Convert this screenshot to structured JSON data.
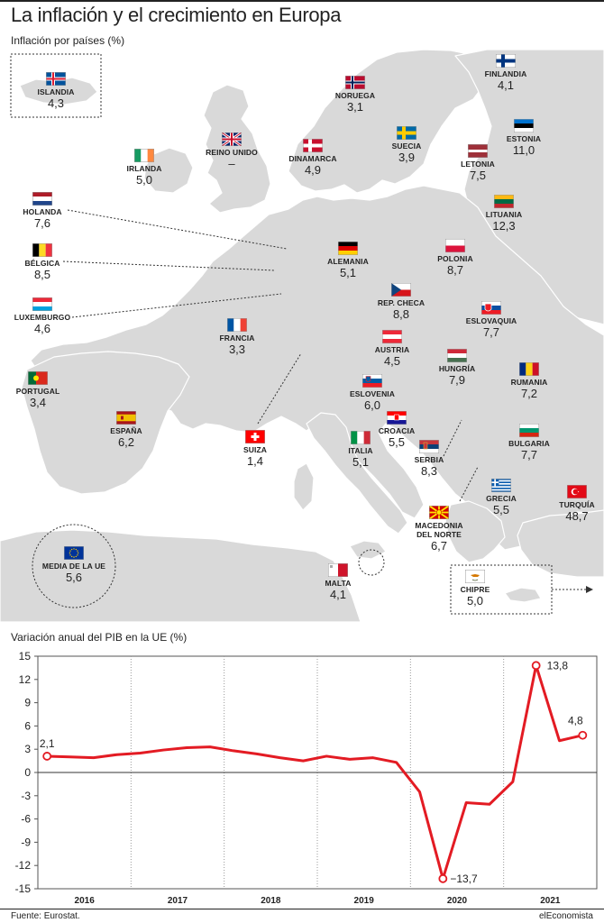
{
  "header": {
    "title": "La inflación y el crecimiento en Europa",
    "map_subtitle": "Inflación por países (%)"
  },
  "colors": {
    "land": "#d9d9d9",
    "sea": "#ffffff",
    "line": "#e31b23"
  },
  "countries": [
    {
      "key": "islandia",
      "name": "ISLANDIA",
      "value": "4,3",
      "flag": "iceland-flag"
    },
    {
      "key": "noruega",
      "name": "NORUEGA",
      "value": "3,1",
      "flag": "norway-flag"
    },
    {
      "key": "finlandia",
      "name": "FINLANDIA",
      "value": "4,1",
      "flag": "finland-flag"
    },
    {
      "key": "reino_unido",
      "name": "REINO UNIDO",
      "value": "–",
      "flag": "uk-flag"
    },
    {
      "key": "irlanda",
      "name": "IRLANDA",
      "value": "5,0",
      "flag": "ireland-flag"
    },
    {
      "key": "dinamarca",
      "name": "DINAMARCA",
      "value": "4,9",
      "flag": "denmark-flag"
    },
    {
      "key": "suecia",
      "name": "SUECIA",
      "value": "3,9",
      "flag": "sweden-flag"
    },
    {
      "key": "estonia",
      "name": "ESTONIA",
      "value": "11,0",
      "flag": "estonia-flag"
    },
    {
      "key": "letonia",
      "name": "LETONIA",
      "value": "7,5",
      "flag": "latvia-flag"
    },
    {
      "key": "lituania",
      "name": "LITUANIA",
      "value": "12,3",
      "flag": "lithuania-flag"
    },
    {
      "key": "holanda",
      "name": "HOLANDA",
      "value": "7,6",
      "flag": "netherlands-flag"
    },
    {
      "key": "belgica",
      "name": "BÉLGICA",
      "value": "8,5",
      "flag": "belgium-flag"
    },
    {
      "key": "luxemburgo",
      "name": "LUXEMBURGO",
      "value": "4,6",
      "flag": "luxembourg-flag"
    },
    {
      "key": "alemania",
      "name": "ALEMANIA",
      "value": "5,1",
      "flag": "germany-flag"
    },
    {
      "key": "polonia",
      "name": "POLONIA",
      "value": "8,7",
      "flag": "poland-flag"
    },
    {
      "key": "rep_checa",
      "name": "REP. CHECA",
      "value": "8,8",
      "flag": "czech-flag"
    },
    {
      "key": "eslovaquia",
      "name": "ESLOVAQUIA",
      "value": "7,7",
      "flag": "slovakia-flag"
    },
    {
      "key": "francia",
      "name": "FRANCIA",
      "value": "3,3",
      "flag": "france-flag"
    },
    {
      "key": "austria",
      "name": "AUSTRIA",
      "value": "4,5",
      "flag": "austria-flag"
    },
    {
      "key": "hungria",
      "name": "HUNGRÍA",
      "value": "7,9",
      "flag": "hungary-flag"
    },
    {
      "key": "rumania",
      "name": "RUMANIA",
      "value": "7,2",
      "flag": "romania-flag"
    },
    {
      "key": "portugal",
      "name": "PORTUGAL",
      "value": "3,4",
      "flag": "portugal-flag"
    },
    {
      "key": "eslovenia",
      "name": "ESLOVENIA",
      "value": "6,0",
      "flag": "slovenia-flag"
    },
    {
      "key": "croacia",
      "name": "CROACIA",
      "value": "5,5",
      "flag": "croatia-flag"
    },
    {
      "key": "espana",
      "name": "ESPAÑA",
      "value": "6,2",
      "flag": "spain-flag"
    },
    {
      "key": "suiza",
      "name": "SUIZA",
      "value": "1,4",
      "flag": "switzerland-flag"
    },
    {
      "key": "italia",
      "name": "ITALIA",
      "value": "5,1",
      "flag": "italy-flag"
    },
    {
      "key": "serbia",
      "name": "SERBIA",
      "value": "8,3",
      "flag": "serbia-flag"
    },
    {
      "key": "bulgaria",
      "name": "BULGARIA",
      "value": "7,7",
      "flag": "bulgaria-flag"
    },
    {
      "key": "grecia",
      "name": "GRECIA",
      "value": "5,5",
      "flag": "greece-flag"
    },
    {
      "key": "turquia",
      "name": "TURQUÍA",
      "value": "48,7",
      "flag": "turkey-flag"
    },
    {
      "key": "macedonia",
      "name": "MACEDONIA\nDEL NORTE",
      "value": "6,7",
      "flag": "north-macedonia-flag"
    },
    {
      "key": "media_ue",
      "name": "MEDIA DE LA UE",
      "value": "5,6",
      "flag": "eu-flag"
    },
    {
      "key": "malta",
      "name": "MALTA",
      "value": "4,1",
      "flag": "malta-flag"
    },
    {
      "key": "chipre",
      "name": "CHIPRE",
      "value": "5,0",
      "flag": "cyprus-flag"
    }
  ],
  "chart_data": {
    "type": "line",
    "title": "Variación anual del PIB en la UE (%)",
    "x_labels": [
      "2016",
      "2017",
      "2018",
      "2019",
      "2020",
      "2021"
    ],
    "x": [
      "2016 T1",
      "2016 T2",
      "2016 T3",
      "2016 T4",
      "2017 T1",
      "2017 T2",
      "2017 T3",
      "2017 T4",
      "2018 T1",
      "2018 T2",
      "2018 T3",
      "2018 T4",
      "2019 T1",
      "2019 T2",
      "2019 T3",
      "2019 T4",
      "2020 T1",
      "2020 T2",
      "2020 T3",
      "2020 T4",
      "2021 T1",
      "2021 T2",
      "2021 T3",
      "2021 T4"
    ],
    "values": [
      2.1,
      2.0,
      1.9,
      2.3,
      2.5,
      2.9,
      3.2,
      3.3,
      2.8,
      2.4,
      1.9,
      1.5,
      2.1,
      1.7,
      1.9,
      1.3,
      -2.5,
      -13.7,
      -3.9,
      -4.1,
      -1.2,
      13.8,
      4.1,
      4.8
    ],
    "y_ticks": [
      15,
      12,
      9,
      6,
      3,
      0,
      -3,
      -6,
      -9,
      -12,
      -15
    ],
    "y_tick_labels": [
      "15",
      "12",
      "9",
      "6",
      "3",
      "0",
      "-3",
      "-6",
      "-9",
      "-12",
      "-15"
    ],
    "ylim": [
      -15,
      15
    ],
    "annotations": [
      {
        "index": 0,
        "label": "2,1"
      },
      {
        "index": 17,
        "label": "−13,7"
      },
      {
        "index": 21,
        "label": "13,8"
      },
      {
        "index": 23,
        "label": "4,8"
      }
    ],
    "grid": "vertical dotted year separators, solid zero line"
  },
  "footer": {
    "source": "Fuente: Eurostat.",
    "brand": "elEconomista"
  }
}
